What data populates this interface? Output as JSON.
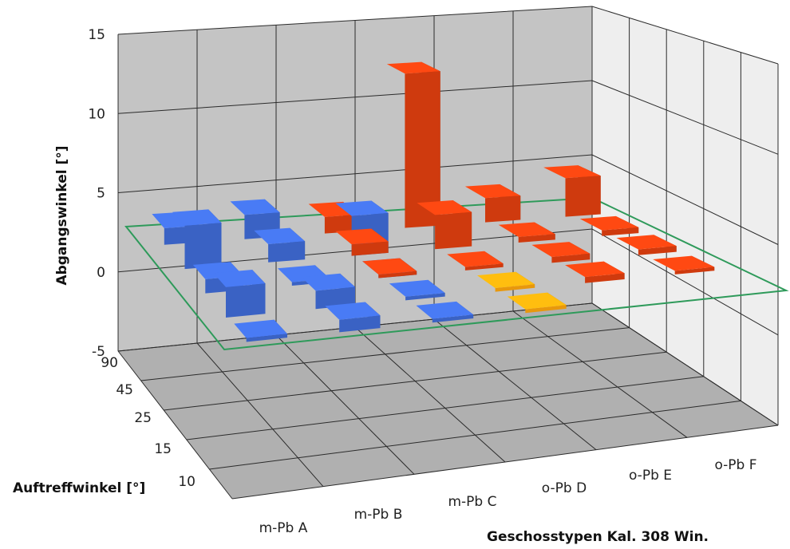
{
  "chart_data": {
    "type": "bar",
    "chart_type_detail": "3d-column",
    "title": "",
    "xlabel": "Geschosstypen  Kal. 308 Win.",
    "ylabel": "Abgangswinkel  [°]",
    "zlabel": "Auftreffwinkel [°]",
    "categories": [
      "m-Pb A",
      "m-Pb B",
      "m-Pb C",
      "o-Pb D",
      "o-Pb E",
      "o-Pb F"
    ],
    "depth_categories": [
      "10",
      "15",
      "25",
      "45",
      "90"
    ],
    "ylim": [
      -5,
      15
    ],
    "yticks": [
      "15",
      "10",
      "5",
      "0",
      "-5"
    ],
    "grid": true,
    "legend": "none",
    "reference_plane_value": 0,
    "colors": {
      "blue": "#3a62c4",
      "red": "#cf3a0e",
      "orange": "#e8980c",
      "reference_plane": "#2e9a5a",
      "back_wall": "#c4c4c4",
      "side_wall": "#eeeeee",
      "floor": "#b0b0b0",
      "grid": "#2b2b2b"
    },
    "series": [
      {
        "depth": "90",
        "color": "blue",
        "values": [
          1.5,
          2.2,
          null,
          null,
          null,
          null
        ]
      },
      {
        "depth": "90",
        "color": "red",
        "values": [
          null,
          null,
          1.5,
          14.0,
          2.2,
          3.5
        ]
      },
      {
        "depth": "45",
        "color": "blue",
        "values": [
          3.8,
          1.6,
          3.5,
          null,
          null,
          null
        ]
      },
      {
        "depth": "45",
        "color": "red",
        "values": [
          null,
          null,
          1.0,
          3.0,
          0.5,
          0.5
        ]
      },
      {
        "depth": "25",
        "color": "blue",
        "values": [
          1.2,
          0.3,
          0.3,
          null,
          null,
          null
        ]
      },
      {
        "depth": "25",
        "color": "red",
        "values": [
          null,
          null,
          0.3,
          0.3,
          0.5,
          0.5
        ]
      },
      {
        "depth": "15",
        "color": "blue",
        "values": [
          2.5,
          1.5,
          0.3,
          null,
          null,
          null
        ]
      },
      {
        "depth": "15",
        "color": "orange",
        "values": [
          null,
          null,
          null,
          0.3,
          null,
          null
        ]
      },
      {
        "depth": "15",
        "color": "red",
        "values": [
          null,
          null,
          null,
          null,
          0.5,
          0.3
        ]
      },
      {
        "depth": "10",
        "color": "blue",
        "values": [
          0.3,
          1.0,
          0.3,
          null,
          null,
          null
        ]
      },
      {
        "depth": "10",
        "color": "orange",
        "values": [
          null,
          null,
          null,
          0.3,
          null,
          null
        ]
      }
    ]
  }
}
